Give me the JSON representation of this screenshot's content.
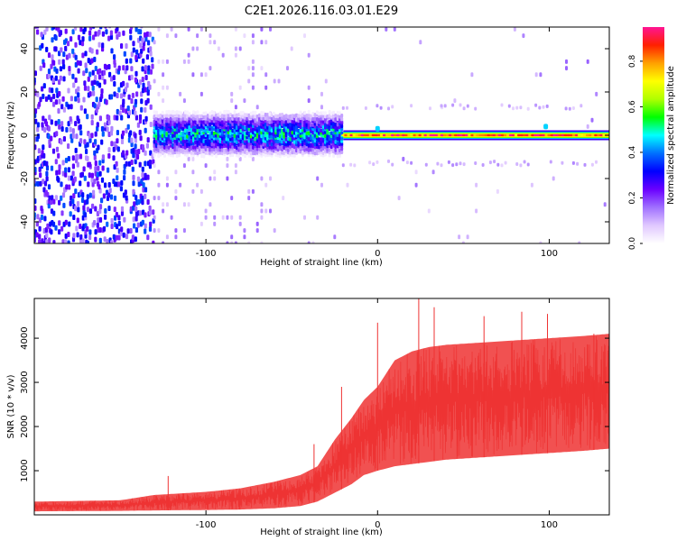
{
  "figure": {
    "title": "C2E1.2026.116.03.01.E29"
  },
  "chart_data": [
    {
      "type": "heatmap",
      "name": "spectrogram",
      "xlabel": "Height of straight line (km)",
      "ylabel": "Frequency (Hz)",
      "xlim": [
        -200,
        135
      ],
      "ylim": [
        -50,
        50
      ],
      "xticks": [
        -100,
        0,
        100
      ],
      "yticks": [
        -40,
        -20,
        0,
        20,
        40
      ],
      "colorbar": {
        "label": "Normalized spectral amplitude",
        "range": [
          0.0,
          0.95
        ],
        "ticks": [
          0.0,
          0.2,
          0.4,
          0.6,
          0.8
        ],
        "colors": [
          "#ffffff",
          "#e0c8ff",
          "#a070ff",
          "#6a00ff",
          "#0000ff",
          "#0070ff",
          "#00ffff",
          "#00ff00",
          "#b0ff00",
          "#ffff00",
          "#ffa000",
          "#ff2000",
          "#ff1493"
        ]
      },
      "features": [
        {
          "name": "carrier-line",
          "freq_hz": 0,
          "x_from_km": -20,
          "x_to_km": 135,
          "amplitude": 0.9
        },
        {
          "name": "broadband-noise",
          "x_from_km": -200,
          "x_to_km": -130,
          "amplitude": 0.3
        },
        {
          "name": "spread-band",
          "x_from_km": -130,
          "x_to_km": -20,
          "center_hz": 0,
          "halfwidth_hz": 8,
          "amplitude": 0.45
        },
        {
          "name": "sideband-upper",
          "freq_hz": 13,
          "x_from_km": -20,
          "x_to_km": 130
        },
        {
          "name": "sideband-lower",
          "freq_hz": -13,
          "x_from_km": -20,
          "x_to_km": 130
        }
      ]
    },
    {
      "type": "line",
      "name": "snr",
      "xlabel": "Height of straight line (km)",
      "ylabel": "SNR (10 * v/v)",
      "xlim": [
        -200,
        135
      ],
      "ylim": [
        0,
        4900
      ],
      "xticks": [
        -100,
        0,
        100
      ],
      "yticks": [
        1000,
        2000,
        3000,
        4000
      ],
      "color": "#ee3333",
      "series": [
        {
          "name": "snr-envelope",
          "x": [
            -200,
            -150,
            -130,
            -100,
            -80,
            -60,
            -45,
            -35,
            -25,
            -15,
            -8,
            0,
            5,
            10,
            20,
            30,
            40,
            60,
            80,
            100,
            120,
            135
          ],
          "lower": [
            80,
            90,
            100,
            110,
            120,
            150,
            200,
            300,
            500,
            700,
            900,
            1000,
            1050,
            1100,
            1150,
            1200,
            1250,
            1300,
            1350,
            1400,
            1450,
            1500
          ],
          "upper": [
            300,
            330,
            450,
            520,
            600,
            750,
            900,
            1100,
            1700,
            2200,
            2600,
            2900,
            3200,
            3500,
            3700,
            3800,
            3850,
            3900,
            3950,
            4000,
            4050,
            4100
          ],
          "peaks": [
            [
              -122,
              880
            ],
            [
              -37,
              1600
            ],
            [
              -21,
              2900
            ],
            [
              0,
              4350
            ],
            [
              24,
              4900
            ],
            [
              33,
              4700
            ],
            [
              62,
              4500
            ],
            [
              84,
              4600
            ],
            [
              99,
              4550
            ],
            [
              126,
              4100
            ]
          ]
        }
      ]
    }
  ]
}
